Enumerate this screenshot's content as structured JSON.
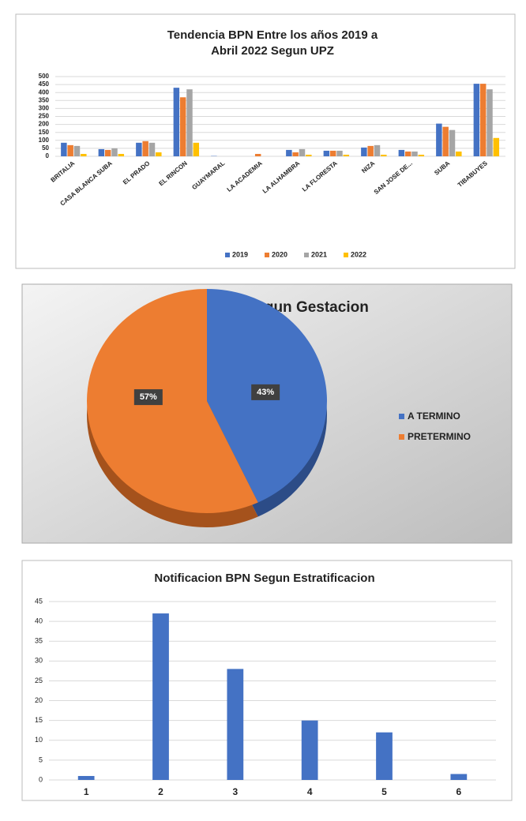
{
  "chart_data": [
    {
      "type": "bar",
      "title": [
        "Tendencia BPN  Entre los años 2019 a",
        "Abril 2022 Segun UPZ"
      ],
      "categories": [
        "BRITALIA",
        "CASA BLANCA SUBA",
        "EL PRADO",
        "EL RINCON",
        "GUAYMARAL",
        "LA ACADEMIA",
        "LA ALHAMBRA",
        "LA FLORESTA",
        "NIZA",
        "SAN JOSE DE...",
        "SUBA",
        "TIBABUYES"
      ],
      "series": [
        {
          "name": "2019",
          "color": "#4472c4",
          "values": [
            85,
            45,
            85,
            430,
            2,
            0,
            40,
            35,
            55,
            40,
            205,
            455
          ]
        },
        {
          "name": "2020",
          "color": "#ed7d31",
          "values": [
            70,
            40,
            95,
            370,
            0,
            15,
            25,
            35,
            65,
            30,
            185,
            455
          ]
        },
        {
          "name": "2021",
          "color": "#a5a5a5",
          "values": [
            65,
            50,
            85,
            420,
            0,
            0,
            45,
            35,
            70,
            30,
            165,
            420
          ]
        },
        {
          "name": "2022",
          "color": "#ffc000",
          "values": [
            15,
            15,
            25,
            85,
            0,
            0,
            10,
            10,
            10,
            10,
            30,
            115
          ]
        }
      ],
      "ylim": [
        0,
        500
      ],
      "yticks": [
        0,
        50,
        100,
        150,
        200,
        250,
        300,
        350,
        400,
        450,
        500
      ],
      "grid": true,
      "legend": "bottom"
    },
    {
      "type": "pie",
      "title": "Porcentaje Segun Gestacion",
      "categories": [
        "A TERMINO",
        "PRETERMINO"
      ],
      "values": [
        43,
        57
      ],
      "value_labels": [
        "43%",
        "57%"
      ],
      "colors": [
        "#4472c4",
        "#ed7d31"
      ],
      "legend": "right"
    },
    {
      "type": "bar",
      "title": [
        "Notificacion BPN Segun Estratificacion"
      ],
      "categories": [
        "1",
        "2",
        "3",
        "4",
        "5",
        "6"
      ],
      "series": [
        {
          "color": "#4472c4",
          "values": [
            1,
            42,
            28,
            15,
            12,
            1.5
          ]
        }
      ],
      "ylim": [
        0,
        45
      ],
      "yticks": [
        0,
        5,
        10,
        15,
        20,
        25,
        30,
        35,
        40,
        45
      ],
      "grid": true
    }
  ]
}
